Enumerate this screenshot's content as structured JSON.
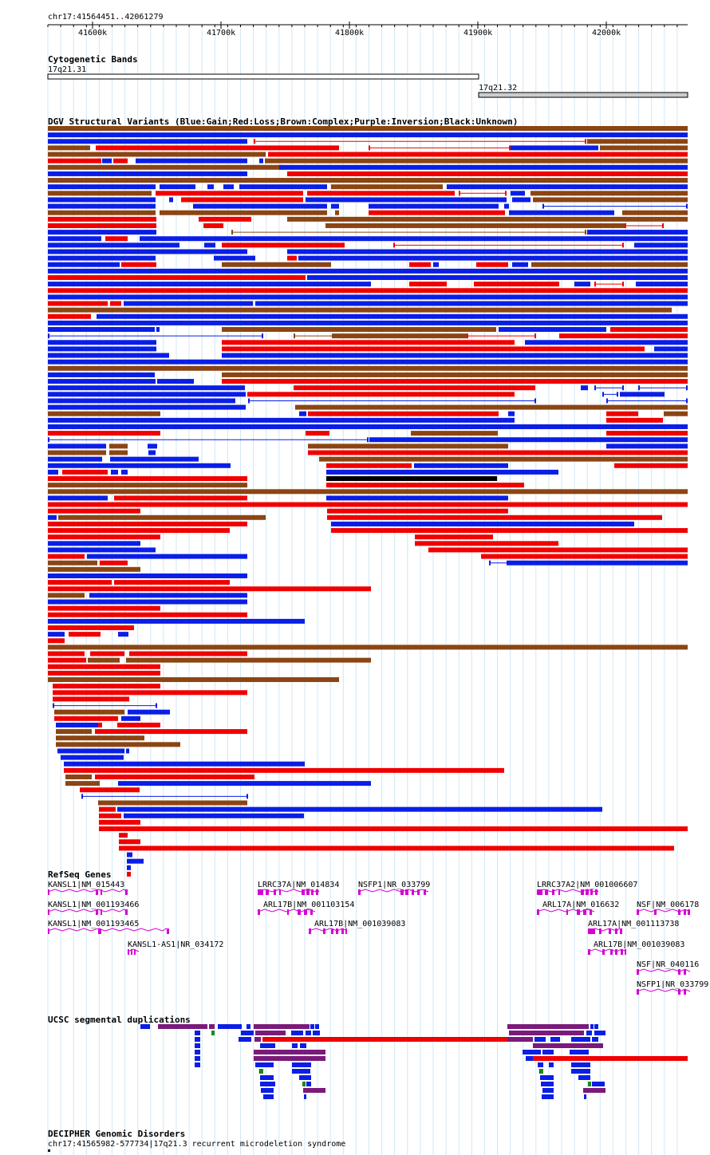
{
  "browser": {
    "locus": "chr17:41564451..42061279"
  },
  "ruler": {
    "ticks": [
      "41600k",
      "41700k",
      "41800k",
      "41900k",
      "42000k"
    ]
  },
  "cytoband": {
    "title": "Cytogenetic Bands",
    "bands": [
      {
        "name": "17q21.31",
        "fill": "#ffffff"
      },
      {
        "name": "17q21.32",
        "fill": "#cccccc"
      }
    ]
  },
  "dgv": {
    "title": "DGV Structural Variants (Blue:Gain;Red:Loss;Brown:Complex;Purple:Inversion;Black:Unknown)",
    "colors": {
      "gain": "#0a1ee6",
      "loss": "#f00000",
      "complex": "#8b4513",
      "unknown": "#000000"
    }
  },
  "refseq": {
    "title": "RefSeq Genes",
    "genes": [
      "KANSL1|NM_015443",
      "KANSL1|NM_001193466",
      "KANSL1|NM_001193465",
      "KANSL1-AS1|NR_034172",
      "LRRC37A|NM_014834",
      "ARL17B|NM_001103154",
      "ARL17B|NM_001039083",
      "NSFP1|NR_033799",
      "LRRC37A2|NM_001006607",
      "ARL17A|NM_016632",
      "ARL17A|NM_001113738",
      "ARL17B|NM_001039083",
      "NSF|NM_006178",
      "NSF|NR_040116",
      "NSFP1|NR_033799"
    ]
  },
  "segdup": {
    "title": "UCSC segmental duplications"
  },
  "decipher": {
    "title": "DECIPHER Genomic Disorders",
    "entry": "chr17:41565982-577734|17q21.3 recurrent microdeletion syndrome"
  }
}
